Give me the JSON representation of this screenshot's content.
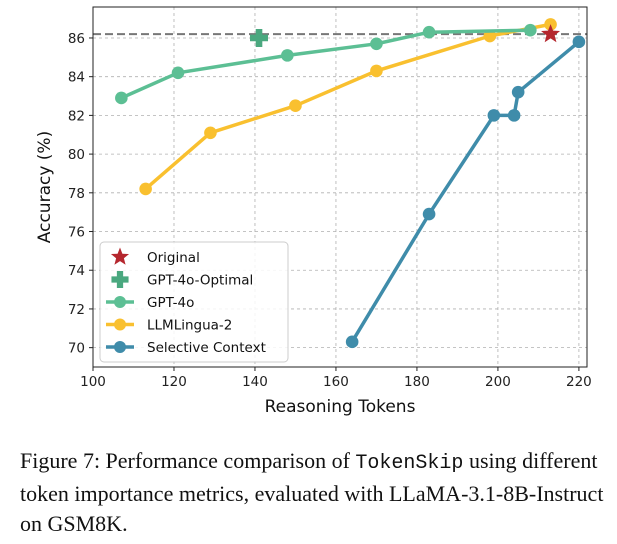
{
  "chart_data": {
    "type": "line",
    "title": "",
    "xlabel": "Reasoning Tokens",
    "ylabel": "Accuracy (%)",
    "xlim": [
      100,
      222
    ],
    "ylim": [
      69,
      87.6
    ],
    "xticks": [
      100,
      120,
      140,
      160,
      180,
      200,
      220
    ],
    "yticks": [
      70,
      72,
      74,
      76,
      78,
      80,
      82,
      84,
      86
    ],
    "grid": true,
    "legend_position": "lower-left",
    "reference_line": {
      "y": 86.2,
      "style": "dashed",
      "color": "#777777"
    },
    "series": [
      {
        "name": "Original",
        "marker": "star",
        "color": "#b5272e",
        "line": false,
        "points": [
          [
            213,
            86.2
          ]
        ]
      },
      {
        "name": "GPT-4o-Optimal",
        "marker": "plus",
        "color": "#4aa87f",
        "line": false,
        "points": [
          [
            141,
            86.0
          ]
        ]
      },
      {
        "name": "GPT-4o",
        "marker": "circle",
        "color": "#5cbf94",
        "line": true,
        "points": [
          [
            107,
            82.9
          ],
          [
            121,
            84.2
          ],
          [
            148,
            85.1
          ],
          [
            170,
            85.7
          ],
          [
            183,
            86.3
          ],
          [
            208,
            86.4
          ]
        ]
      },
      {
        "name": "LLMLingua-2",
        "marker": "circle",
        "color": "#f9c02f",
        "line": true,
        "points": [
          [
            113,
            78.2
          ],
          [
            129,
            81.1
          ],
          [
            150,
            82.5
          ],
          [
            170,
            84.3
          ],
          [
            198,
            86.1
          ],
          [
            213,
            86.7
          ]
        ]
      },
      {
        "name": "Selective Context",
        "marker": "circle",
        "color": "#3f8caa",
        "line": true,
        "points": [
          [
            164,
            70.3
          ],
          [
            183,
            76.9
          ],
          [
            199,
            82.0
          ],
          [
            204,
            82.0
          ],
          [
            205,
            83.2
          ],
          [
            220,
            85.8
          ]
        ]
      }
    ]
  },
  "caption": {
    "prefix": "Figure 7: Performance comparison of ",
    "code": "TokenSkip",
    "suffix": " using different token importance metrics, evaluated with LLaMA-3.1-8B-Instruct on GSM8K."
  }
}
